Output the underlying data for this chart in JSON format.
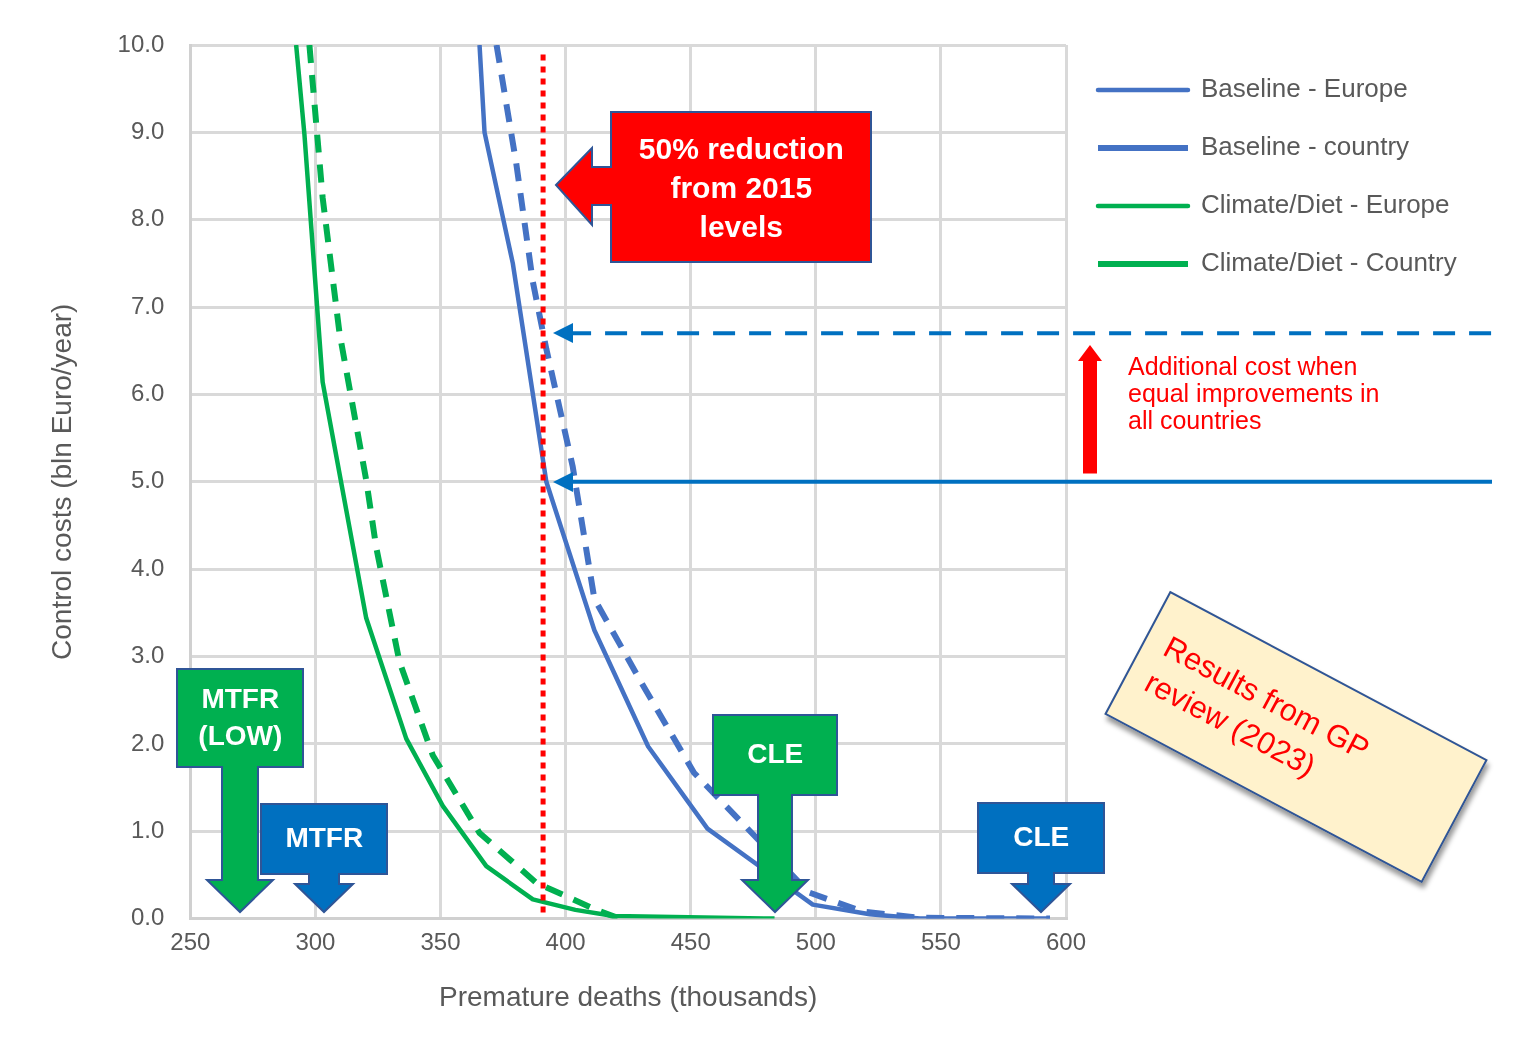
{
  "chart_data": {
    "type": "line",
    "xlabel": "Premature deaths (thousands)",
    "ylabel": "Control costs (bln Euro/year)",
    "xlim": [
      250,
      600
    ],
    "ylim": [
      0,
      10
    ],
    "xticks": [
      250,
      300,
      350,
      400,
      450,
      500,
      550,
      600
    ],
    "yticks": [
      {
        "value": 0,
        "label": "0.0"
      },
      {
        "value": 1,
        "label": "1.0"
      },
      {
        "value": 2,
        "label": "2.0"
      },
      {
        "value": 3,
        "label": "3.0"
      },
      {
        "value": 4,
        "label": "4.0"
      },
      {
        "value": 5,
        "label": "5.0"
      },
      {
        "value": 6,
        "label": "6.0"
      },
      {
        "value": 7,
        "label": "7.0"
      },
      {
        "value": 8,
        "label": "8.0"
      },
      {
        "value": 9,
        "label": "9.0"
      },
      {
        "value": 10,
        "label": "10.0"
      }
    ],
    "grid": true,
    "legend": "top right",
    "marker": "none",
    "series": [
      {
        "name": "Baseline - Europe",
        "color": "#4472c4",
        "line_style": "solid",
        "x": [
          365.6,
          367.6,
          378.9,
          392.3,
          411.5,
          433,
          456.7,
          481.6,
          498.8,
          521.6,
          541.6,
          593.6
        ],
        "values": [
          10,
          9,
          7.5,
          5,
          3.3,
          1.97,
          1.03,
          null,
          0.16,
          0.05,
          0,
          0
        ]
      },
      {
        "name": "Baseline - country",
        "color": "#4472c4",
        "line_style": "dashed",
        "x": [
          372.4,
          380.3,
          386.9,
          392.3,
          402.8,
          411.5,
          429.9,
          451.3,
          478.8,
          497.2,
          518.7,
          541.6,
          593.6
        ],
        "values": [
          10,
          8.64,
          7.29,
          6.52,
          5.18,
          3.66,
          2.72,
          1.67,
          null,
          0.3,
          0.08,
          0.01,
          0
        ]
      },
      {
        "name": "Climate/Diet - Europe",
        "color": "#00b050",
        "line_style": "solid",
        "x": [
          292.3,
          295.6,
          302.9,
          320.3,
          336.3,
          350.9,
          368.3,
          386.9,
          403.9,
          419.2,
          483.5
        ],
        "values": [
          10,
          8.98,
          6.14,
          3.44,
          2.06,
          1.29,
          0.6,
          0.22,
          0.1,
          0.03,
          0
        ]
      },
      {
        "name": "Climate/Diet - Country",
        "color": "#00b050",
        "line_style": "dashed",
        "x": [
          297.6,
          302.9,
          309.6,
          320.3,
          324.3,
          333.6,
          346.9,
          365.6,
          388.3,
          412.3,
          421.6
        ],
        "values": [
          10,
          8.25,
          6.71,
          5.02,
          4.25,
          2.94,
          1.87,
          0.98,
          0.41,
          0.1,
          0
        ]
      }
    ],
    "ref_lines": [
      {
        "axis": "x",
        "value": 391,
        "color": "#ff0000",
        "line_style": "dotted"
      },
      {
        "axis": "y",
        "value": 6.7,
        "color": "#0070c0",
        "line_style": "dashed"
      },
      {
        "axis": "y",
        "value": 5,
        "color": "#0070c0",
        "line_style": "solid"
      }
    ],
    "annotations": [
      "50% reduction from 2015 levels",
      "Additional cost when equal improvements in all countries",
      "Results from GP review (2023)",
      "MTFR (LOW)",
      "MTFR",
      "CLE",
      "CLE"
    ]
  }
}
